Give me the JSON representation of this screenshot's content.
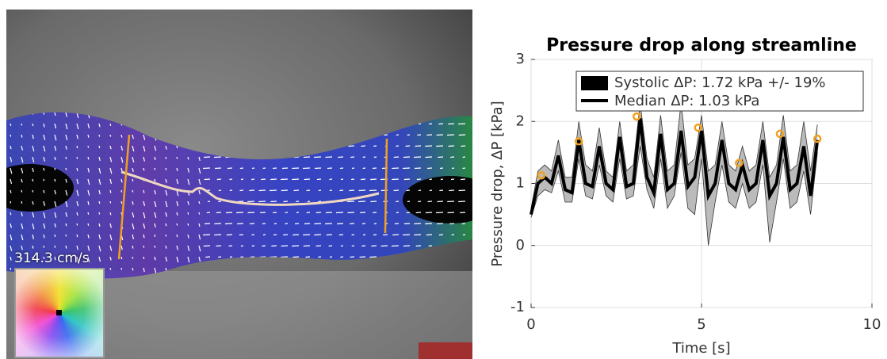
{
  "colorbar_label": "314.3 cm/s",
  "chart_data": {
    "type": "line",
    "title": "Pressure drop along streamline",
    "xlabel": "Time [s]",
    "ylabel": "Pressure drop, ΔP [kPa]",
    "xlim": [
      0,
      10
    ],
    "ylim": [
      -1,
      3
    ],
    "xticks": [
      0,
      5,
      10
    ],
    "yticks": [
      -1,
      0,
      1,
      2,
      3
    ],
    "grid": true,
    "x": [
      0,
      0.2,
      0.4,
      0.6,
      0.8,
      1.0,
      1.2,
      1.4,
      1.6,
      1.8,
      2.0,
      2.2,
      2.4,
      2.6,
      2.8,
      3.0,
      3.2,
      3.4,
      3.6,
      3.8,
      4.0,
      4.2,
      4.4,
      4.6,
      4.8,
      5.0,
      5.2,
      5.4,
      5.6,
      5.8,
      6.0,
      6.2,
      6.4,
      6.6,
      6.8,
      7.0,
      7.2,
      7.4,
      7.6,
      7.8,
      8.0,
      8.2,
      8.4
    ],
    "series": [
      {
        "name": "Median ΔP: 1.03 kPa",
        "color": "#000000",
        "values": [
          0.5,
          1.0,
          1.1,
          1.0,
          1.45,
          0.9,
          0.85,
          1.7,
          1.0,
          0.95,
          1.6,
          1.0,
          0.9,
          1.75,
          0.95,
          1.0,
          2.05,
          1.1,
          0.85,
          1.8,
          0.9,
          1.0,
          1.85,
          0.95,
          1.1,
          1.85,
          0.8,
          1.0,
          1.7,
          1.0,
          0.9,
          1.3,
          0.9,
          1.0,
          1.7,
          0.8,
          1.0,
          1.75,
          0.9,
          1.0,
          1.6,
          0.8,
          1.7
        ]
      }
    ],
    "band": {
      "color": "#bbbbbb",
      "lower": [
        0.45,
        0.8,
        0.9,
        0.85,
        1.2,
        0.7,
        0.7,
        1.4,
        0.8,
        0.75,
        1.3,
        0.8,
        0.7,
        1.4,
        0.75,
        0.8,
        1.6,
        0.9,
        0.6,
        1.4,
        0.6,
        0.8,
        1.5,
        0.6,
        0.5,
        1.4,
        0.0,
        0.7,
        1.3,
        0.7,
        0.6,
        1.0,
        0.6,
        0.7,
        1.3,
        0.05,
        0.7,
        1.4,
        0.6,
        0.7,
        1.2,
        0.5,
        1.5
      ],
      "upper": [
        0.6,
        1.2,
        1.3,
        1.2,
        1.7,
        1.1,
        1.1,
        2.0,
        1.3,
        1.2,
        1.9,
        1.2,
        1.1,
        2.0,
        1.2,
        1.3,
        2.3,
        1.4,
        1.1,
        2.1,
        1.2,
        1.3,
        2.3,
        1.3,
        1.4,
        2.1,
        1.2,
        1.3,
        2.0,
        1.3,
        1.2,
        1.6,
        1.2,
        1.3,
        2.0,
        1.1,
        1.3,
        2.1,
        1.2,
        1.3,
        2.0,
        1.2,
        1.95
      ]
    },
    "markers": {
      "name": "Systolic ΔP: 1.72 kPa +/- 19%",
      "color": "#f0a020",
      "x": [
        0.3,
        1.4,
        3.1,
        4.9,
        6.1,
        7.3,
        8.4
      ],
      "values": [
        1.13,
        1.68,
        2.08,
        1.9,
        1.33,
        1.8,
        1.72
      ]
    }
  }
}
